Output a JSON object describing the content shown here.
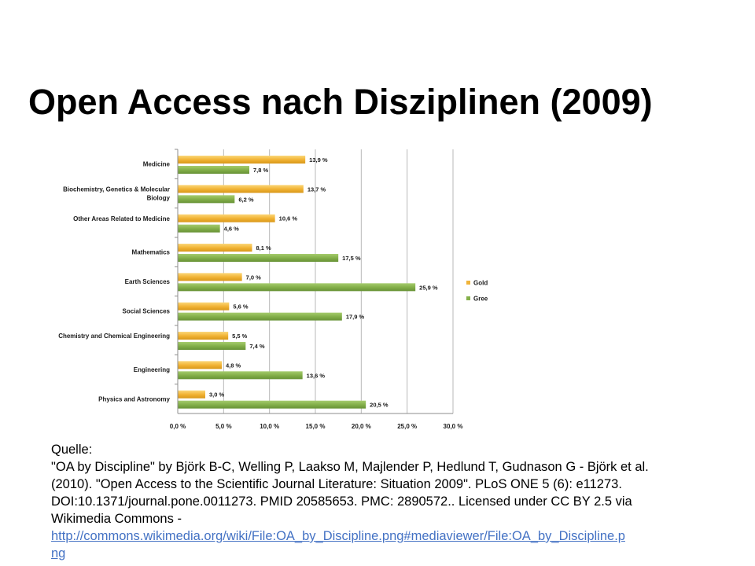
{
  "slide": {
    "title": "Open Access nach Disziplinen (2009)"
  },
  "source": {
    "label": "Quelle:",
    "text": "\"OA by Discipline\" by Björk B-C, Welling P, Laakso M, Majlender P, Hedlund T, Gudnason G - Björk et al. (2010). \"Open Access to the Scientific Journal Literature: Situation 2009\". PLoS ONE 5 (6): e11273. DOI:10.1371/journal.pone.0011273. PMID 20585653. PMC: 2890572.. Licensed under CC BY 2.5 via Wikimedia Commons -",
    "link": "http://commons.wikimedia.org/wiki/File:OA_by_Discipline.png#mediaviewer/File:OA_by_Discipline.png"
  },
  "chart_data": {
    "type": "bar",
    "orientation": "horizontal",
    "categories": [
      "Medicine",
      "Biochemistry, Genetics & Molecular Biology",
      "Other Areas Related to Medicine",
      "Mathematics",
      "Earth Sciences",
      "Social Sciences",
      "Chemistry and Chemical Engineering",
      "Engineering",
      "Physics and Astronomy"
    ],
    "series": [
      {
        "name": "Gold",
        "color": "#f0b43a",
        "values": [
          13.9,
          13.7,
          10.6,
          8.1,
          7.0,
          5.6,
          5.5,
          4.8,
          3.0
        ]
      },
      {
        "name": "Green",
        "color": "#84b04a",
        "values": [
          7.8,
          6.2,
          4.6,
          17.5,
          25.9,
          17.9,
          7.4,
          13.6,
          20.5
        ]
      }
    ],
    "value_labels": {
      "Gold": [
        "13,9 %",
        "13,7 %",
        "10,6 %",
        "8,1 %",
        "7,0 %",
        "5,6 %",
        "5,5 %",
        "4,8 %",
        "3,0 %"
      ],
      "Green": [
        "7,8 %",
        "6,2 %",
        "4,6 %",
        "17,5 %",
        "25,9 %",
        "17,9 %",
        "7,4 %",
        "13,6 %",
        "20,5 %"
      ]
    },
    "xlim": [
      0,
      30
    ],
    "xticks": [
      0,
      5,
      10,
      15,
      20,
      25,
      30
    ],
    "xtick_labels": [
      "0,0 %",
      "5,0 %",
      "10,0 %",
      "15,0 %",
      "20,0 %",
      "25,0 %",
      "30,0 %"
    ],
    "grid": true,
    "legend_position": "right"
  }
}
